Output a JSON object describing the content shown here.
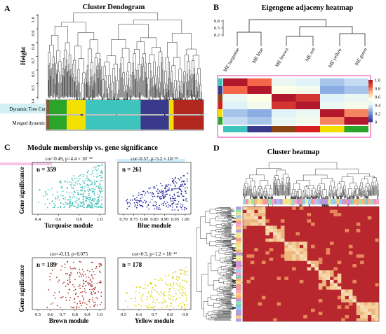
{
  "panels": {
    "a": {
      "letter": "A",
      "title": "Cluster Dendogram",
      "ylabel": "Height",
      "yticks": [
        "1.0",
        "0.9",
        "0.8",
        "0.7",
        "0.6",
        "0.5",
        "0.4"
      ],
      "row_labels": [
        "Dynamic Tree Cut",
        "Merged dynamic"
      ],
      "bands": [
        {
          "color": "#7f5b3a",
          "frac": 0.02
        },
        {
          "color": "#2aa52a",
          "frac": 0.11
        },
        {
          "color": "#f2e000",
          "frac": 0.12
        },
        {
          "color": "#3cc4bd",
          "frac": 0.35
        },
        {
          "color": "#3a3a8c",
          "frac": 0.18
        },
        {
          "color": "#f2e000",
          "frac": 0.03
        },
        {
          "color": "#b2281e",
          "frac": 0.19
        }
      ]
    },
    "b": {
      "letter": "B",
      "title": "Eigengene adjaceny heatmap",
      "yticks": [
        "0.8",
        "0.5",
        "0.2"
      ],
      "modules": [
        "ME turquoise",
        "ME blue",
        "ME brown",
        "ME red",
        "ME yellow",
        "ME green"
      ],
      "module_colors": [
        "#3cc4bd",
        "#3a3a8c",
        "#8b4513",
        "#d62020",
        "#f2e000",
        "#2aa52a"
      ],
      "legend_ticks": [
        "1.0",
        "0.8",
        "0.6",
        "0.4",
        "0.2",
        "0"
      ],
      "matrix": [
        [
          1.0,
          0.82,
          0.45,
          0.4,
          0.3,
          0.35
        ],
        [
          0.82,
          1.0,
          0.55,
          0.5,
          0.25,
          0.3
        ],
        [
          0.45,
          0.55,
          1.0,
          0.92,
          0.4,
          0.45
        ],
        [
          0.4,
          0.5,
          0.92,
          1.0,
          0.45,
          0.5
        ],
        [
          0.3,
          0.25,
          0.4,
          0.45,
          1.0,
          0.78
        ],
        [
          0.35,
          0.3,
          0.45,
          0.5,
          0.78,
          1.0
        ]
      ]
    },
    "c": {
      "letter": "C",
      "title": "Module membership vs. gene significance",
      "ylabel": "Gene significance",
      "plots": [
        {
          "stat": "cor=0.49, p=4.4 × 10⁻²³",
          "n": "n = 359",
          "xlabel": "Turquoise module",
          "color": "#37bfb5",
          "xticks": [
            "0.4",
            "0.6",
            "0.8",
            "1.0"
          ]
        },
        {
          "stat": "cor=0.57, p=5.2 × 10⁻²³",
          "n": "n = 261",
          "xlabel": "Blue module",
          "color": "#2a2aa0",
          "xticks": [
            "0.70",
            "0.75",
            "0.80",
            "0.85",
            "0.90",
            "0.95",
            "1.00"
          ]
        },
        {
          "stat": "cor=-0.13, p=0.075",
          "n": "n = 189",
          "xlabel": "Brown module",
          "color": "#a52a2a",
          "xticks": [
            "0.5",
            "0.6",
            "0.7",
            "0.8",
            "0.9",
            "1.0"
          ]
        },
        {
          "stat": "cor=0.5, p=1.2 × 10⁻¹²",
          "n": "n = 178",
          "xlabel": "Yellow module",
          "color": "#d8d000",
          "xticks": [
            "0.5",
            "0.6",
            "0.7",
            "0.8",
            "0.9"
          ]
        }
      ]
    },
    "d": {
      "letter": "D",
      "title": "Cluster heatmap"
    }
  }
}
